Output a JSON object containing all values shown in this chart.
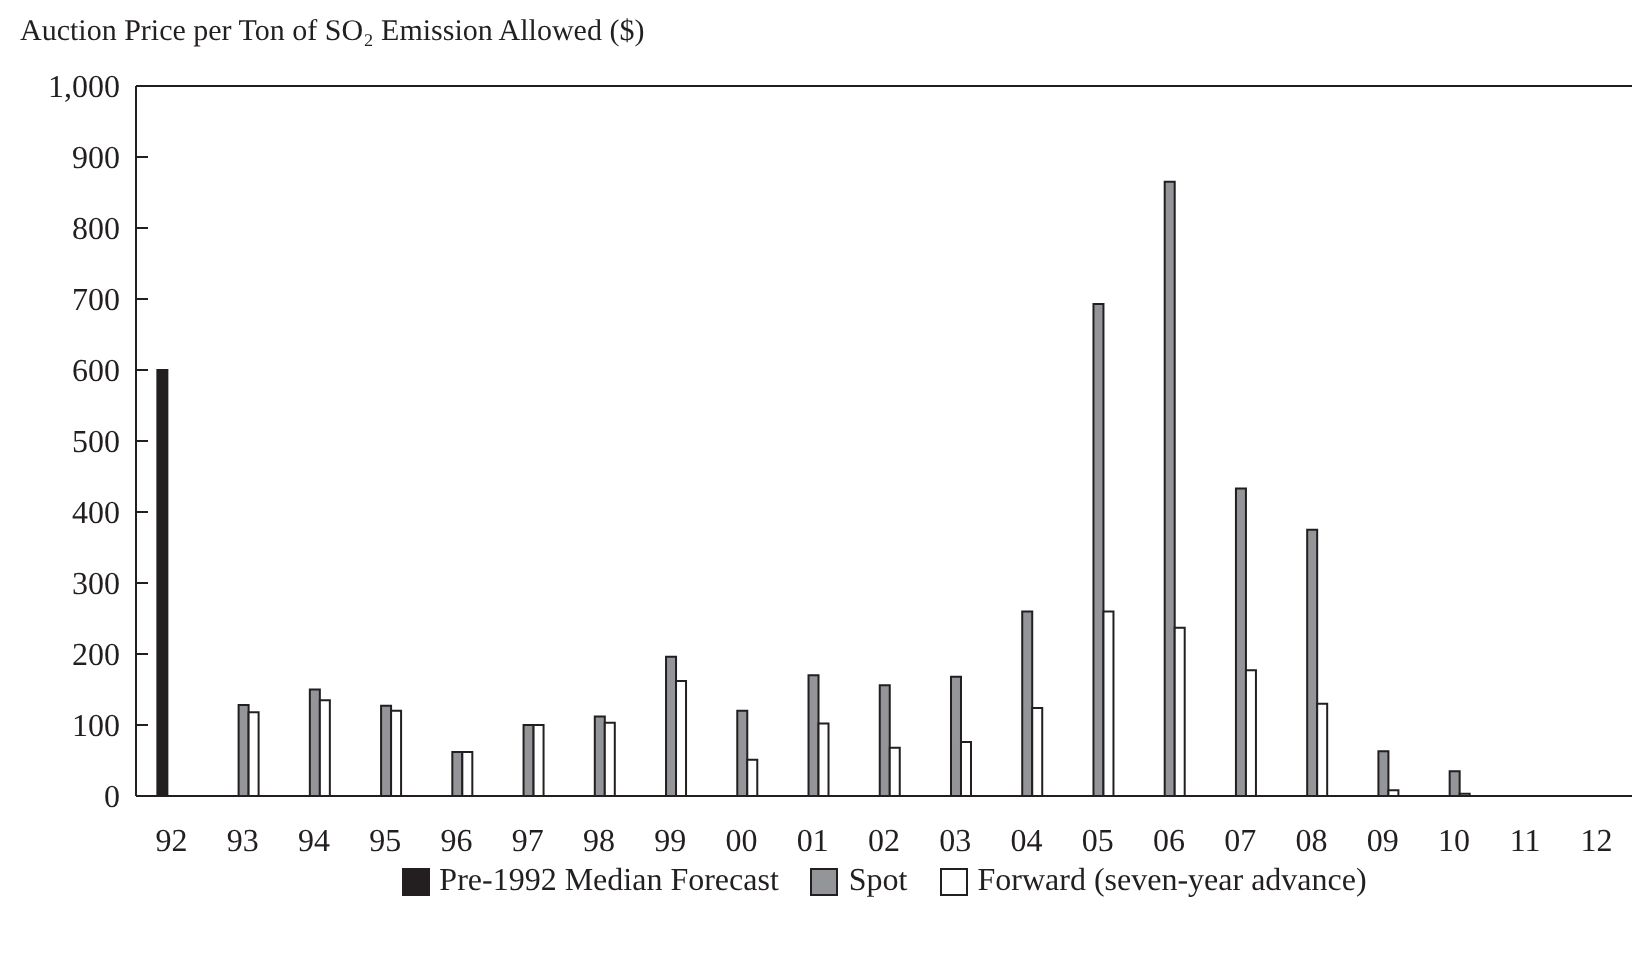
{
  "chart_data": {
    "type": "bar",
    "title": "Auction Price per Ton of SO₂ Emission Allowed ($)",
    "categories": [
      "92",
      "93",
      "94",
      "95",
      "96",
      "97",
      "98",
      "99",
      "00",
      "01",
      "02",
      "03",
      "04",
      "05",
      "06",
      "07",
      "08",
      "09",
      "10",
      "11",
      "12"
    ],
    "series": [
      {
        "name": "Pre-1992 Median Forecast",
        "color": "#231f20",
        "values": [
          600,
          null,
          null,
          null,
          null,
          null,
          null,
          null,
          null,
          null,
          null,
          null,
          null,
          null,
          null,
          null,
          null,
          null,
          null,
          null,
          null
        ]
      },
      {
        "name": "Spot",
        "color": "#939598",
        "values": [
          null,
          128,
          150,
          127,
          62,
          100,
          112,
          196,
          120,
          170,
          156,
          168,
          260,
          693,
          865,
          433,
          375,
          63,
          35,
          null,
          null
        ]
      },
      {
        "name": "Forward (seven-year advance)",
        "color": "#ffffff",
        "values": [
          null,
          118,
          135,
          120,
          62,
          100,
          103,
          162,
          51,
          102,
          68,
          76,
          124,
          260,
          237,
          177,
          130,
          8,
          3,
          null,
          null
        ]
      }
    ],
    "ylim": [
      0,
      1000
    ],
    "yticks": [
      0,
      100,
      200,
      300,
      400,
      500,
      600,
      700,
      800,
      900,
      {
        "value": 1000,
        "label": "1,000"
      }
    ],
    "grid": false,
    "legend": "bottom"
  }
}
